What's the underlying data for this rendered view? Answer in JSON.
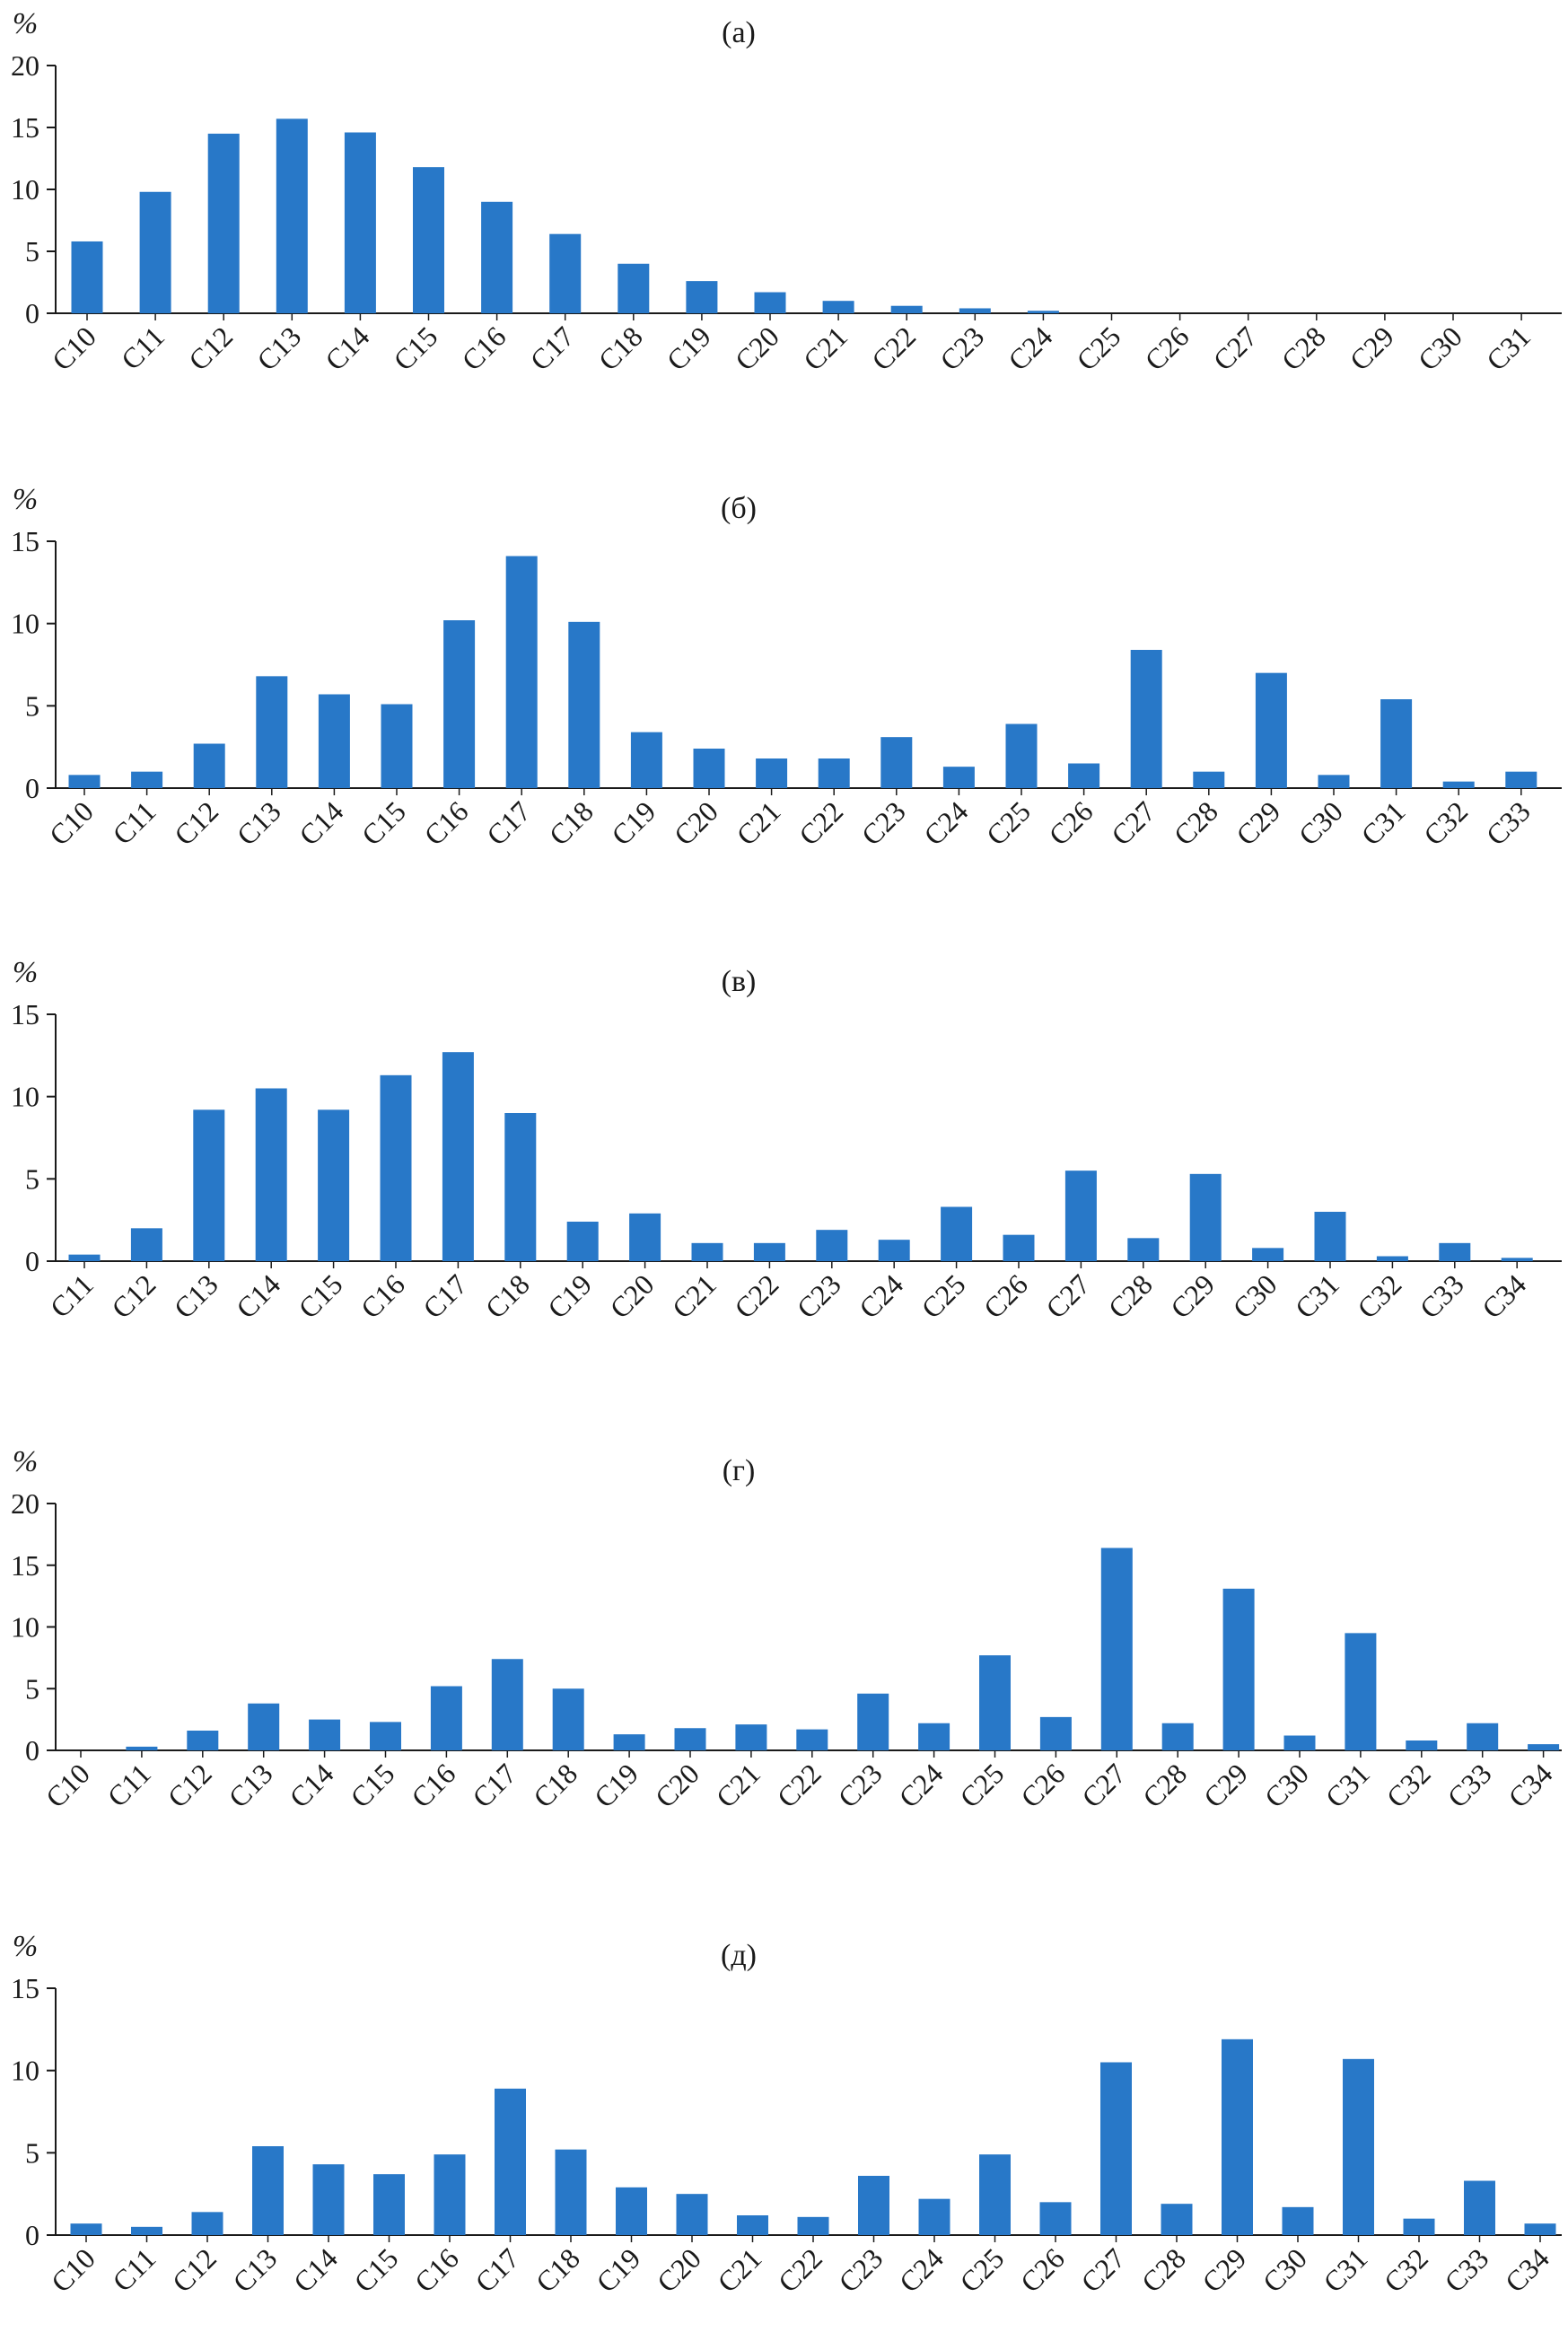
{
  "chart_data": [
    {
      "type": "bar",
      "title": "(а)",
      "ylabel": "%",
      "ylim": [
        0,
        20
      ],
      "yticks": [
        0,
        5,
        10,
        15,
        20
      ],
      "categories": [
        "C10",
        "C11",
        "C12",
        "C13",
        "C14",
        "C15",
        "C16",
        "C17",
        "C18",
        "C19",
        "C20",
        "C21",
        "C22",
        "C23",
        "C24",
        "C25",
        "C26",
        "C27",
        "C28",
        "C29",
        "C30",
        "C31"
      ],
      "values": [
        5.8,
        9.8,
        14.5,
        15.7,
        14.6,
        11.8,
        9.0,
        6.4,
        4.0,
        2.6,
        1.7,
        1.0,
        0.6,
        0.4,
        0.2,
        0,
        0,
        0,
        0,
        0,
        0,
        0
      ],
      "color": "#2878c8"
    },
    {
      "type": "bar",
      "title": "(б)",
      "ylabel": "%",
      "ylim": [
        0,
        15
      ],
      "yticks": [
        0,
        5,
        10,
        15
      ],
      "categories": [
        "C10",
        "C11",
        "C12",
        "C13",
        "C14",
        "C15",
        "C16",
        "C17",
        "C18",
        "C19",
        "C20",
        "C21",
        "C22",
        "C23",
        "C24",
        "C25",
        "C26",
        "C27",
        "C28",
        "C29",
        "C30",
        "C31",
        "C32",
        "C33"
      ],
      "values": [
        0.8,
        1.0,
        2.7,
        6.8,
        5.7,
        5.1,
        10.2,
        14.1,
        10.1,
        3.4,
        2.4,
        1.8,
        1.8,
        3.1,
        1.3,
        3.9,
        1.5,
        8.4,
        1.0,
        7.0,
        0.8,
        5.4,
        0.4,
        1.0
      ],
      "color": "#2878c8"
    },
    {
      "type": "bar",
      "title": "(в)",
      "ylabel": "%",
      "ylim": [
        0,
        15
      ],
      "yticks": [
        0,
        5,
        10,
        15
      ],
      "categories": [
        "C11",
        "C12",
        "C13",
        "C14",
        "C15",
        "C16",
        "C17",
        "C18",
        "C19",
        "C20",
        "C21",
        "C22",
        "C23",
        "C24",
        "C25",
        "C26",
        "C27",
        "C28",
        "C29",
        "C30",
        "C31",
        "C32",
        "C33",
        "C34"
      ],
      "values": [
        0.4,
        2.0,
        9.2,
        10.5,
        9.2,
        11.3,
        12.7,
        9.0,
        2.4,
        2.9,
        1.1,
        1.1,
        1.9,
        1.3,
        3.3,
        1.6,
        5.5,
        1.4,
        5.3,
        0.8,
        3.0,
        0.3,
        1.1,
        0.2
      ],
      "color": "#2878c8"
    },
    {
      "type": "bar",
      "title": "(г)",
      "ylabel": "%",
      "ylim": [
        0,
        20
      ],
      "yticks": [
        0,
        5,
        10,
        15,
        20
      ],
      "categories": [
        "C10",
        "C11",
        "C12",
        "C13",
        "C14",
        "C15",
        "C16",
        "C17",
        "C18",
        "C19",
        "C20",
        "C21",
        "C22",
        "C23",
        "C24",
        "C25",
        "C26",
        "C27",
        "C28",
        "C29",
        "C30",
        "C31",
        "C32",
        "C33",
        "C34"
      ],
      "values": [
        0,
        0.3,
        1.6,
        3.8,
        2.5,
        2.3,
        5.2,
        7.4,
        5.0,
        1.3,
        1.8,
        2.1,
        1.7,
        4.6,
        2.2,
        7.7,
        2.7,
        16.4,
        2.2,
        13.1,
        1.2,
        9.5,
        0.8,
        2.2,
        0.5
      ],
      "color": "#2878c8"
    },
    {
      "type": "bar",
      "title": "(д)",
      "ylabel": "%",
      "ylim": [
        0,
        15
      ],
      "yticks": [
        0,
        5,
        10,
        15
      ],
      "categories": [
        "C10",
        "C11",
        "C12",
        "C13",
        "C14",
        "C15",
        "C16",
        "C17",
        "C18",
        "C19",
        "C20",
        "C21",
        "C22",
        "C23",
        "C24",
        "C25",
        "C26",
        "C27",
        "C28",
        "C29",
        "C30",
        "C31",
        "C32",
        "C33",
        "C34"
      ],
      "values": [
        0.7,
        0.5,
        1.4,
        5.4,
        4.3,
        3.7,
        4.9,
        8.9,
        5.2,
        2.9,
        2.5,
        1.2,
        1.1,
        3.6,
        2.2,
        4.9,
        2.0,
        10.5,
        1.9,
        11.9,
        1.7,
        10.7,
        1.0,
        3.3,
        0.7
      ],
      "color": "#2878c8"
    }
  ]
}
